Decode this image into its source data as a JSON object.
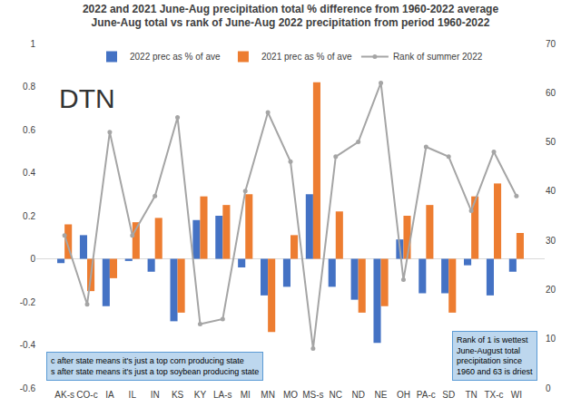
{
  "chart_data": {
    "type": "bar",
    "title": [
      "2022 and 2021 June-Aug precipitation total % difference from 1960-2022 average",
      "June-Aug total vs rank of June-Aug 2022 precipitation from period 1960-2022"
    ],
    "categories": [
      "AK-s",
      "CO-c",
      "IA",
      "IL",
      "IN",
      "KS",
      "KY",
      "LA-s",
      "MI",
      "MN",
      "MO",
      "MS-s",
      "NC",
      "ND",
      "NE",
      "OH",
      "PA-c",
      "SD",
      "TN",
      "TX-c",
      "WI"
    ],
    "series": [
      {
        "name": "2022 prec as % of ave",
        "type": "bar",
        "color": "#4472c4",
        "values": [
          -0.02,
          0.11,
          -0.22,
          -0.01,
          -0.06,
          -0.29,
          0.18,
          0.2,
          -0.04,
          -0.17,
          -0.13,
          0.3,
          -0.13,
          -0.19,
          -0.39,
          0.09,
          -0.16,
          -0.16,
          -0.03,
          -0.17,
          -0.06
        ]
      },
      {
        "name": "2021 prec as % of ave",
        "type": "bar",
        "color": "#ed7d31",
        "values": [
          0.16,
          -0.15,
          -0.09,
          0.17,
          0.19,
          -0.25,
          0.29,
          0.25,
          0.3,
          -0.34,
          0.11,
          0.82,
          0.22,
          -0.25,
          -0.22,
          0.2,
          0.25,
          -0.25,
          0.29,
          0.35,
          0.12
        ]
      },
      {
        "name": "Rank of summer 2022",
        "type": "line",
        "axis": "y2",
        "color": "#a5a5a5",
        "marker": "circle",
        "values": [
          31,
          17,
          52,
          31,
          39,
          55,
          13,
          14,
          40,
          56,
          46,
          8,
          47,
          50,
          62,
          22,
          49,
          47,
          36,
          48,
          39
        ]
      }
    ],
    "ylim": [
      -0.6,
      1
    ],
    "yticks": [
      -0.6,
      -0.4,
      -0.2,
      0,
      0.2,
      0.4,
      0.6,
      0.8,
      1
    ],
    "y2lim": [
      0,
      70
    ],
    "y2ticks": [
      0,
      10,
      20,
      30,
      40,
      50,
      60,
      70
    ],
    "grid": false,
    "legend": "top",
    "annotations": [
      [
        "DTN"
      ],
      [
        "c after state means it's just a top corn producing state",
        "s after state means it's just a top soybean producing state"
      ],
      [
        "Rank of 1 is wettest",
        "June-August total",
        "precipitation since",
        "1960 and 63 is driest"
      ]
    ]
  }
}
